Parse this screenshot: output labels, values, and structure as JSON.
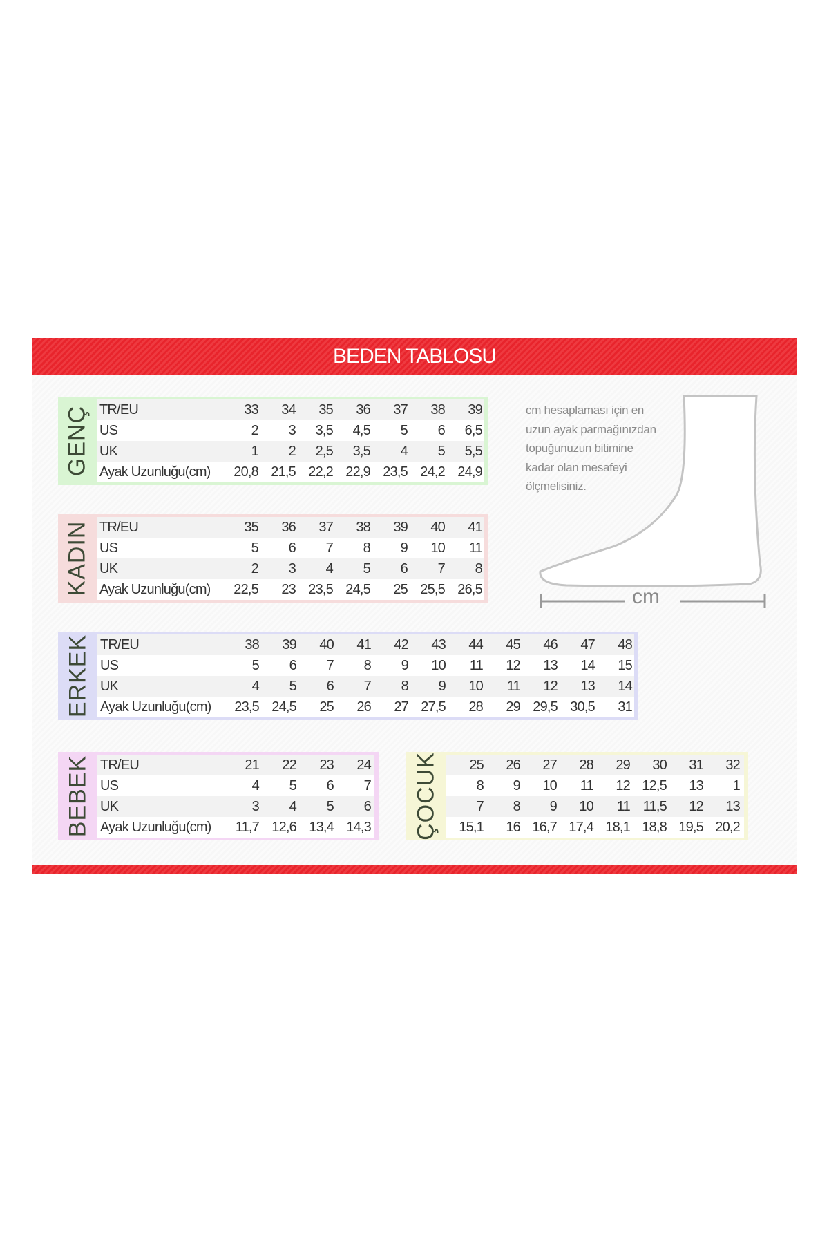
{
  "title": "BEDEN TABLOSU",
  "note": [
    "cm hesaplaması için en",
    "uzun ayak parmağınızdan",
    "topuğunuzun bitimine",
    "kadar olan mesafeyi",
    "ölçmelisiniz."
  ],
  "measure_label": "cm",
  "row_labels": [
    "TR/EU",
    "US",
    "UK",
    "Ayak Uzunluğu(cm)"
  ],
  "tables": {
    "genc": {
      "label": "GENÇ",
      "color": "#d9f5d3",
      "rows": [
        [
          "33",
          "34",
          "35",
          "36",
          "37",
          "38",
          "39"
        ],
        [
          "2",
          "3",
          "3,5",
          "4,5",
          "5",
          "6",
          "6,5"
        ],
        [
          "1",
          "2",
          "2,5",
          "3,5",
          "4",
          "5",
          "5,5"
        ],
        [
          "20,8",
          "21,5",
          "22,2",
          "22,9",
          "23,5",
          "24,2",
          "24,9"
        ]
      ]
    },
    "kadin": {
      "label": "KADIN",
      "color": "#f6dcdc",
      "rows": [
        [
          "35",
          "36",
          "37",
          "38",
          "39",
          "40",
          "41"
        ],
        [
          "5",
          "6",
          "7",
          "8",
          "9",
          "10",
          "11"
        ],
        [
          "2",
          "3",
          "4",
          "5",
          "6",
          "7",
          "8"
        ],
        [
          "22,5",
          "23",
          "23,5",
          "24,5",
          "25",
          "25,5",
          "26,5"
        ]
      ]
    },
    "erkek": {
      "label": "ERKEK",
      "color": "#dcdcf6",
      "rows": [
        [
          "38",
          "39",
          "40",
          "41",
          "42",
          "43",
          "44",
          "45",
          "46",
          "47",
          "48"
        ],
        [
          "5",
          "6",
          "7",
          "8",
          "9",
          "10",
          "11",
          "12",
          "13",
          "14",
          "15"
        ],
        [
          "4",
          "5",
          "6",
          "7",
          "8",
          "9",
          "10",
          "11",
          "12",
          "13",
          "14"
        ],
        [
          "23,5",
          "24,5",
          "25",
          "26",
          "27",
          "27,5",
          "28",
          "29",
          "29,5",
          "30,5",
          "31"
        ]
      ]
    },
    "bebek": {
      "label": "BEBEK",
      "color": "#f4d6f4",
      "rows": [
        [
          "21",
          "22",
          "23",
          "24"
        ],
        [
          "4",
          "5",
          "6",
          "7"
        ],
        [
          "3",
          "4",
          "5",
          "6"
        ],
        [
          "11,7",
          "12,6",
          "13,4",
          "14,3"
        ]
      ]
    },
    "cocuk": {
      "label": "ÇOCUK",
      "color": "#f6f6d6",
      "rows": [
        [
          "25",
          "26",
          "27",
          "28",
          "29",
          "30",
          "31",
          "32"
        ],
        [
          "8",
          "9",
          "10",
          "11",
          "12",
          "12,5",
          "13",
          "1"
        ],
        [
          "7",
          "8",
          "9",
          "10",
          "11",
          "11,5",
          "12",
          "13"
        ],
        [
          "15,1",
          "16",
          "16,7",
          "17,4",
          "18,1",
          "18,8",
          "19,5",
          "20,2"
        ]
      ]
    }
  }
}
